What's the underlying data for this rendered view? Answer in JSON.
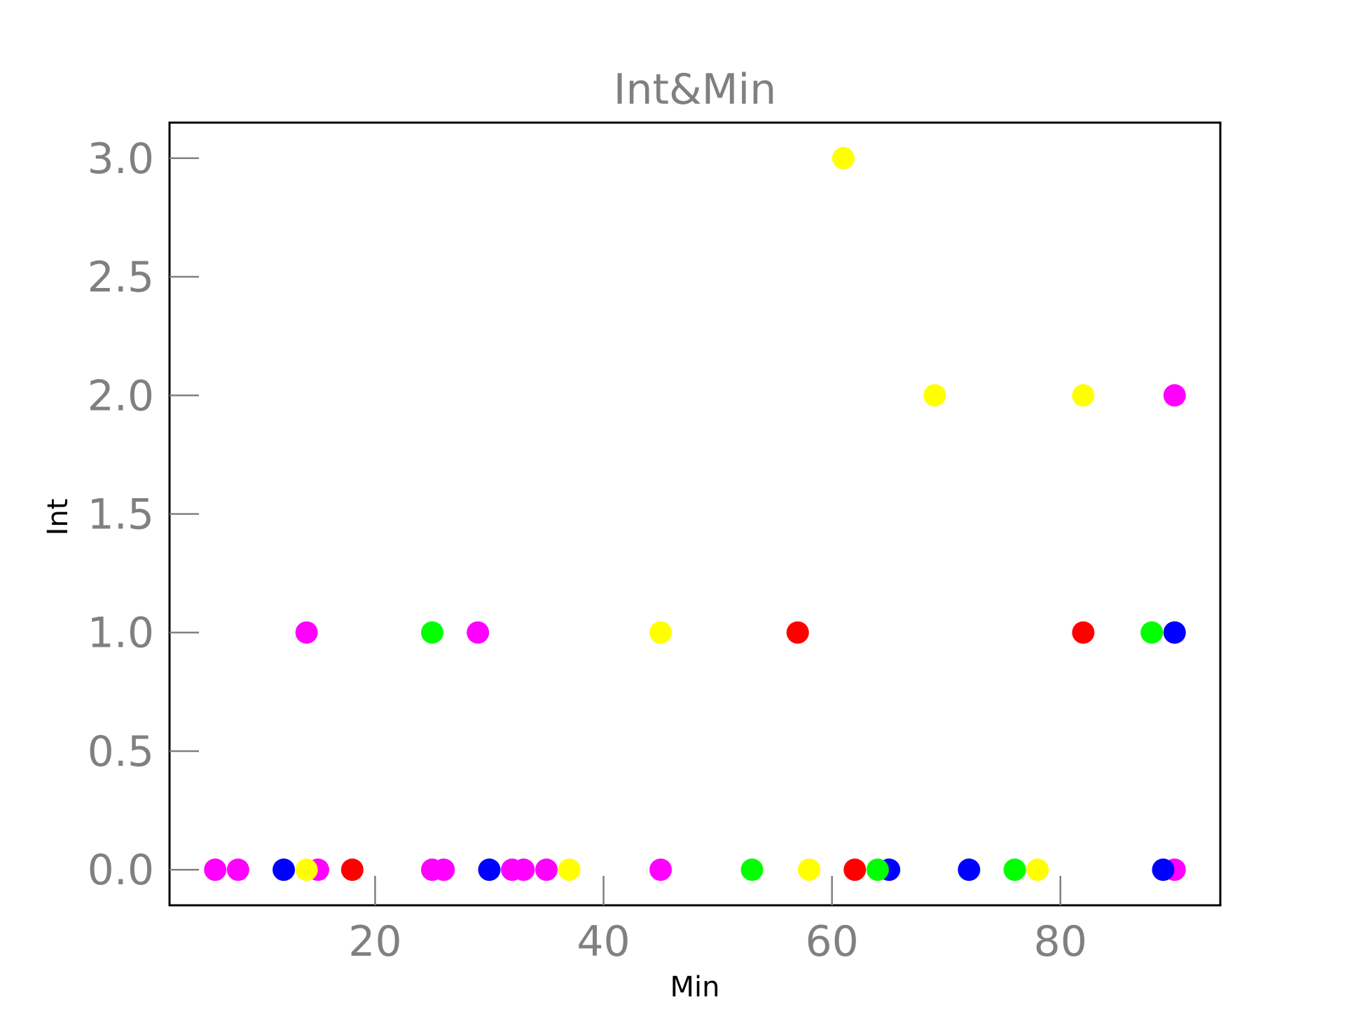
{
  "chart_data": {
    "type": "scatter",
    "title": "Int&Min",
    "xlabel": "Min",
    "ylabel": "Int",
    "xlim": [
      2,
      94
    ],
    "ylim": [
      -0.15,
      3.15
    ],
    "xticks": [
      20,
      40,
      60,
      80
    ],
    "xtick_labels": [
      "20",
      "40",
      "60",
      "80"
    ],
    "yticks": [
      0.0,
      0.5,
      1.0,
      1.5,
      2.0,
      2.5,
      3.0
    ],
    "ytick_labels": [
      "0.0",
      "0.5",
      "1.0",
      "1.5",
      "2.0",
      "2.5",
      "3.0"
    ],
    "grid": false,
    "legend": "none",
    "colors": {
      "magenta": "#ff00ff",
      "blue": "#0000ff",
      "yellow": "#ffff00",
      "red": "#ff0000",
      "green": "#00ff00"
    },
    "series": [
      {
        "color": "#ff00ff",
        "x": [
          6,
          8,
          15,
          25,
          26,
          32,
          33,
          35,
          45,
          90,
          14,
          29,
          90,
          90
        ],
        "y": [
          0,
          0,
          0,
          0,
          0,
          0,
          0,
          0,
          0,
          0,
          1,
          1,
          1,
          2
        ]
      },
      {
        "color": "#0000ff",
        "x": [
          12,
          30,
          65,
          72,
          89,
          90
        ],
        "y": [
          0,
          0,
          0,
          0,
          0,
          1
        ]
      },
      {
        "color": "#ffff00",
        "x": [
          14,
          37,
          58,
          78,
          45,
          69,
          82,
          61
        ],
        "y": [
          0,
          0,
          0,
          0,
          1,
          2,
          2,
          3
        ]
      },
      {
        "color": "#ff0000",
        "x": [
          18,
          62,
          57,
          82
        ],
        "y": [
          0,
          0,
          1,
          1
        ]
      },
      {
        "color": "#00ff00",
        "x": [
          53,
          64,
          76,
          25,
          88
        ],
        "y": [
          0,
          0,
          0,
          1,
          1
        ]
      }
    ]
  }
}
